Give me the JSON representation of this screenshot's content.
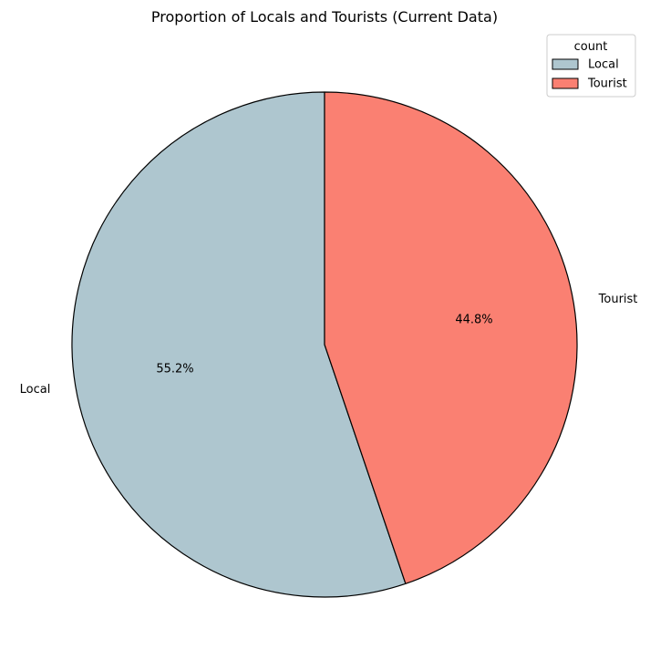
{
  "chart_data": {
    "type": "pie",
    "title": "Proportion of Locals and Tourists (Current Data)",
    "categories": [
      "Local",
      "Tourist"
    ],
    "values": [
      55.2,
      44.8
    ],
    "value_labels": [
      "55.2%",
      "44.8%"
    ],
    "colors": [
      "#aec6cf",
      "#fa8072"
    ],
    "edge_color": "#000000",
    "start_angle_deg": 90,
    "direction": "counterclockwise",
    "legend": {
      "title": "count",
      "entries": [
        "Local",
        "Tourist"
      ],
      "placement": "top-right"
    }
  }
}
